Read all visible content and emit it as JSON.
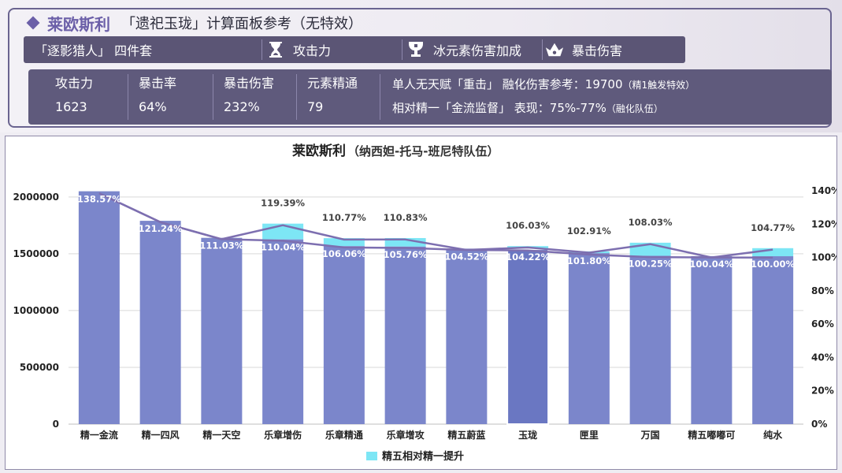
{
  "header": {
    "hero_name": "莱欧斯利",
    "calc_title": "「遗祀玉珑」计算面板参考（无特效）",
    "tags": [
      {
        "label": "「逐影猎人」 四件套",
        "icon": ""
      },
      {
        "label": "攻击力",
        "icon": "hourglass-icon"
      },
      {
        "label": "冰元素伤害加成",
        "icon": "goblet-icon"
      },
      {
        "label": "暴击伤害",
        "icon": "circlet-icon"
      }
    ],
    "stats": [
      {
        "label": "攻击力",
        "value": "1623"
      },
      {
        "label": "暴击率",
        "value": "64%"
      },
      {
        "label": "暴击伤害",
        "value": "232%"
      },
      {
        "label": "元素精通",
        "value": "79"
      }
    ],
    "note1_main": "单人无天赋「重击」 融化伤害参考：19700",
    "note1_small": "（精1触发特效）",
    "note2_main": "相对精一「金流监督」 表现：75%-77%",
    "note2_small": "（融化队伍）"
  },
  "chart_data": {
    "type": "bar",
    "title": "莱欧斯利",
    "subtitle": "（纳西妲-托马-班尼特队伍）",
    "categories": [
      "精一金流",
      "精一四风",
      "精一天空",
      "乐章增伤",
      "乐章精通",
      "乐章增攻",
      "精五蔚蓝",
      "玉珑",
      "匣里",
      "万国",
      "精五嘟嘟可",
      "纯水"
    ],
    "ylim": [
      0,
      2200000
    ],
    "y_ticks": [
      "0",
      "500000",
      "1000000",
      "1500000",
      "2000000"
    ],
    "y2lim": [
      0,
      1.5
    ],
    "y2_ticks": [
      "0%",
      "20%",
      "40%",
      "60%",
      "80%",
      "100%",
      "120%",
      "140%"
    ],
    "base_values": [
      2050000,
      1790000,
      1640000,
      1626000,
      1567000,
      1563000,
      1545000,
      1540000,
      1505000,
      1482000,
      1479000,
      1478000
    ],
    "refine_values": [
      2050000,
      1790000,
      1640000,
      1765000,
      1637000,
      1638000,
      1545000,
      1567000,
      1521000,
      1597000,
      1479000,
      1549000
    ],
    "base_labels": [
      "138.57%",
      "121.24%",
      "111.03%",
      "110.04%",
      "106.06%",
      "105.76%",
      "104.52%",
      "104.22%",
      "101.80%",
      "100.25%",
      "100.04%",
      "100.00%"
    ],
    "refine_labels": [
      "",
      "",
      "",
      "119.39%",
      "110.77%",
      "110.83%",
      "",
      "106.03%",
      "102.91%",
      "108.03%",
      "",
      "104.77%"
    ],
    "line_base": [
      1.3857,
      1.2124,
      1.1103,
      1.1004,
      1.0606,
      1.0576,
      1.0452,
      1.0422,
      1.018,
      1.0025,
      1.0004,
      1.0
    ],
    "line_refine": [
      1.3857,
      1.2124,
      1.1103,
      1.1939,
      1.1077,
      1.1083,
      1.0452,
      1.0603,
      1.0291,
      1.0803,
      1.0004,
      1.0477
    ],
    "highlight_index": 7,
    "legend": "精五相对精一提升",
    "colors": {
      "bar": "#7b86cb",
      "bar_highlight": "#6a77c2",
      "refine": "#7de6f5",
      "line": "#7d6fb0"
    }
  }
}
